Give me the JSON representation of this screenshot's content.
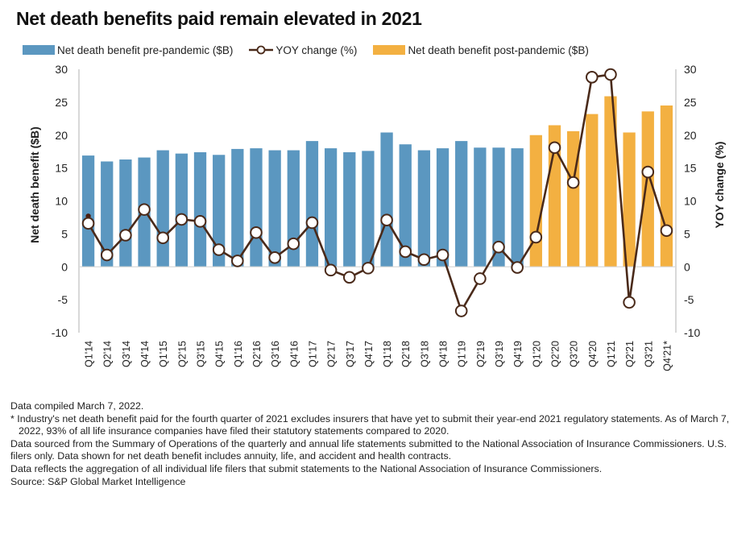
{
  "title": "Net death benefits paid remain elevated in 2021",
  "colors": {
    "pre_pandemic": "#5b97c0",
    "post_pandemic": "#f3b041",
    "yoy_line": "#4a2a1a",
    "yoy_marker_fill": "#ffffff",
    "axis": "#cccccc"
  },
  "legend": [
    {
      "label": "Net death benefit pre-pandemic ($B)",
      "type": "bar",
      "color": "#5b97c0"
    },
    {
      "label": "YOY change (%)",
      "type": "line-marker",
      "color": "#4a2a1a"
    },
    {
      "label": "Net death benefit post-pandemic ($B)",
      "type": "bar",
      "color": "#f3b041"
    }
  ],
  "chart_data": {
    "type": "bar",
    "title": "Net death benefits paid remain elevated in 2021",
    "xlabel": "",
    "ylabel": "Net death benefit ($B)",
    "y2label": "YOY change (%)",
    "ylim": [
      -10,
      30
    ],
    "y2lim": [
      -10,
      30
    ],
    "yticks": [
      -10,
      -5,
      0,
      5,
      10,
      15,
      20,
      25,
      30
    ],
    "y2ticks": [
      -10,
      -5,
      0,
      5,
      10,
      15,
      20,
      25,
      30
    ],
    "grid": false,
    "legend_position": "top",
    "categories": [
      "Q1'14",
      "Q2'14",
      "Q3'14",
      "Q4'14",
      "Q1'15",
      "Q2'15",
      "Q3'15",
      "Q4'15",
      "Q1'16",
      "Q2'16",
      "Q3'16",
      "Q4'16",
      "Q1'17",
      "Q2'17",
      "Q3'17",
      "Q4'17",
      "Q1'18",
      "Q2'18",
      "Q3'18",
      "Q4'18",
      "Q1'19",
      "Q2'19",
      "Q3'19",
      "Q4'19",
      "Q1'20",
      "Q2'20",
      "Q3'20",
      "Q4'20",
      "Q1'21",
      "Q2'21",
      "Q3'21",
      "Q4'21*"
    ],
    "series": [
      {
        "name": "Net death benefit pre-pandemic ($B)",
        "type": "bar",
        "axis": "left",
        "values": [
          16.9,
          16.0,
          16.3,
          16.6,
          17.7,
          17.2,
          17.4,
          17.0,
          17.9,
          18.0,
          17.7,
          17.7,
          19.1,
          18.0,
          17.4,
          17.6,
          20.4,
          18.6,
          17.7,
          18.0,
          19.1,
          18.1,
          18.1,
          18.0,
          null,
          null,
          null,
          null,
          null,
          null,
          null,
          null
        ]
      },
      {
        "name": "Net death benefit post-pandemic ($B)",
        "type": "bar",
        "axis": "left",
        "values": [
          null,
          null,
          null,
          null,
          null,
          null,
          null,
          null,
          null,
          null,
          null,
          null,
          null,
          null,
          null,
          null,
          null,
          null,
          null,
          null,
          null,
          null,
          null,
          null,
          20.0,
          21.5,
          20.6,
          23.2,
          25.9,
          20.4,
          23.6,
          24.5
        ]
      },
      {
        "name": "YOY change (%)",
        "type": "line",
        "axis": "right",
        "values": [
          6.6,
          1.8,
          4.8,
          8.7,
          4.4,
          7.2,
          6.9,
          2.6,
          0.9,
          5.2,
          1.4,
          3.5,
          6.7,
          -0.5,
          -1.6,
          -0.2,
          7.1,
          2.3,
          1.1,
          1.8,
          -6.7,
          -1.8,
          3.0,
          -0.1,
          4.5,
          18.1,
          12.8,
          28.8,
          29.2,
          -5.4,
          14.4,
          5.5
        ]
      }
    ]
  },
  "footnotes": [
    {
      "text": "Data compiled March 7, 2022.",
      "indent": false
    },
    {
      "text": "* Industry's net death benefit paid for the fourth quarter of 2021 excludes insurers that have yet to submit their year-end 2021 regulatory statements. As of March 7, 2022, 93% of all life insurance companies have filed their statutory statements compared to 2020.",
      "indent": true
    },
    {
      "text": "Data sourced from the Summary of Operations of the quarterly and annual life statements submitted to the National Association of Insurance Commissioners. U.S. filers only. Data shown for net death benefit includes annuity, life, and accident and health contracts.",
      "indent": false
    },
    {
      "text": "Data reflects the aggregation of all individual life filers that submit statements to the National Association of Insurance Commissioners.",
      "indent": false
    },
    {
      "text": "Source: S&P Global Market Intelligence",
      "indent": false
    }
  ]
}
